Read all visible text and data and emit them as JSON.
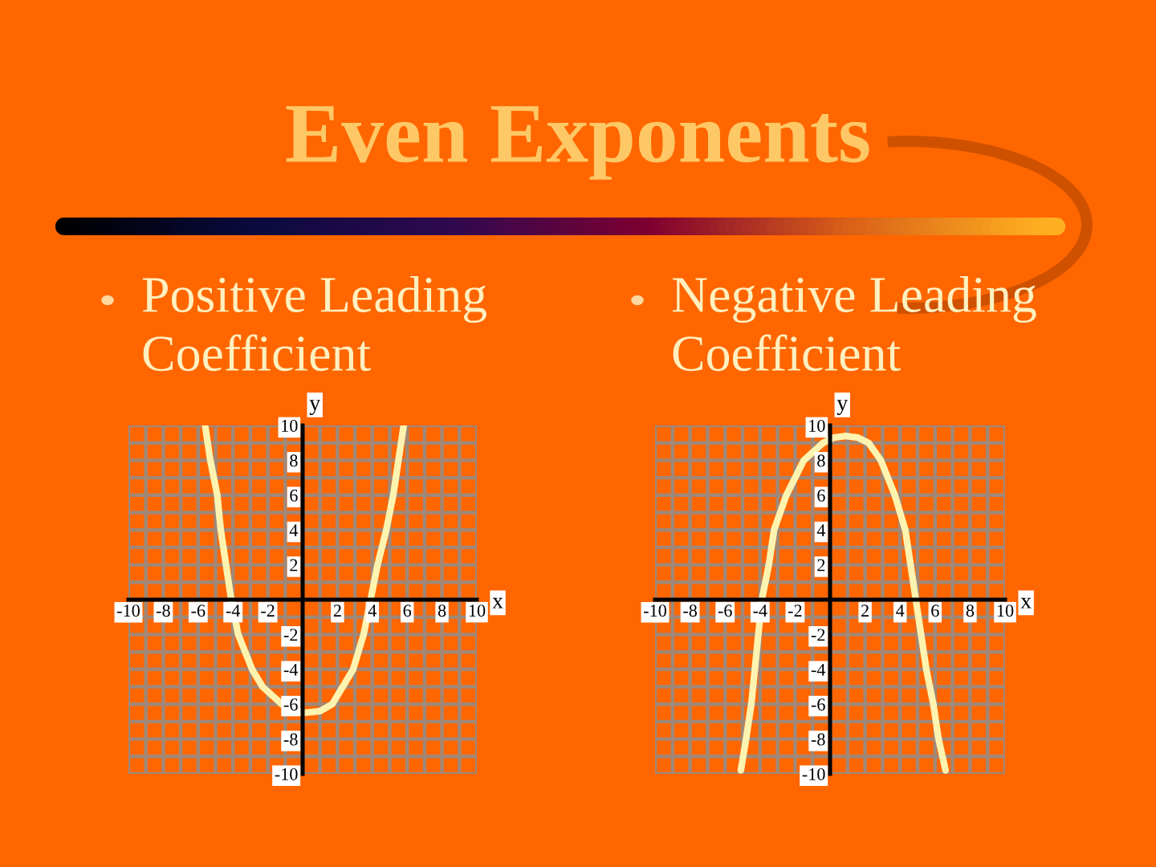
{
  "chart_data": [
    {
      "type": "line",
      "title": "Positive Leading Coefficient",
      "annotations": [
        "Even Exponents"
      ],
      "xlabel": "x",
      "ylabel": "y",
      "series": [
        {
          "color": "#fff3b0",
          "x": [
            -5.6,
            -5.3,
            -4.9,
            -4.7,
            -4.4,
            -4.1,
            -3.7,
            -2.9,
            -2.3,
            -1.2,
            0,
            1,
            1.7,
            2.3,
            2.9,
            3.5,
            3.9,
            4.3,
            4.8,
            5.2,
            5.5,
            5.8
          ],
          "values": [
            10,
            8,
            6,
            4,
            2,
            0,
            -2,
            -4,
            -5,
            -6,
            -6.5,
            -6.4,
            -6,
            -5,
            -4,
            -2,
            0,
            2,
            4,
            6,
            8,
            10
          ]
        }
      ],
      "xlim": [
        -10,
        10
      ],
      "ylim": [
        -10,
        10
      ],
      "xticks": [
        -10,
        {
          "value": -9,
          "label": null
        },
        -8,
        {
          "value": -7,
          "label": null
        },
        -6,
        {
          "value": -5,
          "label": null
        },
        -4,
        {
          "value": -3,
          "label": null
        },
        -2,
        {
          "value": -1,
          "label": null
        },
        {
          "value": 0,
          "label": null
        },
        {
          "value": 1,
          "label": null
        },
        2,
        {
          "value": 3,
          "label": null
        },
        4,
        {
          "value": 5,
          "label": null
        },
        6,
        {
          "value": 7,
          "label": null
        },
        8,
        {
          "value": 9,
          "label": null
        },
        10
      ],
      "yticks": [
        -10,
        {
          "value": -9,
          "label": null
        },
        -8,
        {
          "value": -7,
          "label": null
        },
        -6,
        {
          "value": -5,
          "label": null
        },
        -4,
        {
          "value": -3,
          "label": null
        },
        -2,
        {
          "value": -1,
          "label": null
        },
        {
          "value": 0,
          "label": null
        },
        {
          "value": 1,
          "label": null
        },
        2,
        {
          "value": 3,
          "label": null
        },
        4,
        {
          "value": 5,
          "label": null
        },
        6,
        {
          "value": 7,
          "label": null
        },
        8,
        {
          "value": 9,
          "label": null
        },
        10
      ],
      "grid": true,
      "marker": "none",
      "line_style": "solid"
    },
    {
      "type": "line",
      "title": "Negative Leading Coefficient",
      "xlabel": "x",
      "ylabel": "y",
      "series": [
        {
          "color": "#fff3b0",
          "x": [
            -5.1,
            -4.8,
            -4.5,
            -4.3,
            -4.1,
            -3.9,
            -3.5,
            -3.2,
            -2.5,
            -1.5,
            -0.4,
            0.2,
            0.9,
            1.6,
            2.2,
            2.9,
            3.7,
            4.3,
            4.6,
            4.9,
            5.2,
            5.5,
            5.9,
            6.2,
            6.6
          ],
          "values": [
            -9.8,
            -8,
            -6,
            -4,
            -2,
            0,
            2,
            4,
            6,
            8,
            9,
            9.3,
            9.4,
            9.3,
            9,
            8,
            6,
            4,
            2,
            0,
            -2,
            -4,
            -6,
            -8,
            -9.8
          ]
        }
      ],
      "xlim": [
        -10,
        10
      ],
      "ylim": [
        -10,
        10
      ],
      "xticks": [
        -10,
        {
          "value": -9,
          "label": null
        },
        -8,
        {
          "value": -7,
          "label": null
        },
        -6,
        {
          "value": -5,
          "label": null
        },
        -4,
        {
          "value": -3,
          "label": null
        },
        -2,
        {
          "value": -1,
          "label": null
        },
        {
          "value": 0,
          "label": null
        },
        {
          "value": 1,
          "label": null
        },
        2,
        {
          "value": 3,
          "label": null
        },
        4,
        {
          "value": 5,
          "label": null
        },
        6,
        {
          "value": 7,
          "label": null
        },
        8,
        {
          "value": 9,
          "label": null
        },
        10
      ],
      "yticks": [
        -10,
        {
          "value": -9,
          "label": null
        },
        -8,
        {
          "value": -7,
          "label": null
        },
        -6,
        {
          "value": -5,
          "label": null
        },
        -4,
        {
          "value": -3,
          "label": null
        },
        -2,
        {
          "value": -1,
          "label": null
        },
        {
          "value": 0,
          "label": null
        },
        {
          "value": 1,
          "label": null
        },
        2,
        {
          "value": 3,
          "label": null
        },
        4,
        {
          "value": 5,
          "label": null
        },
        6,
        {
          "value": 7,
          "label": null
        },
        8,
        {
          "value": 9,
          "label": null
        },
        10
      ],
      "grid": true,
      "marker": "none",
      "line_style": "solid"
    }
  ]
}
